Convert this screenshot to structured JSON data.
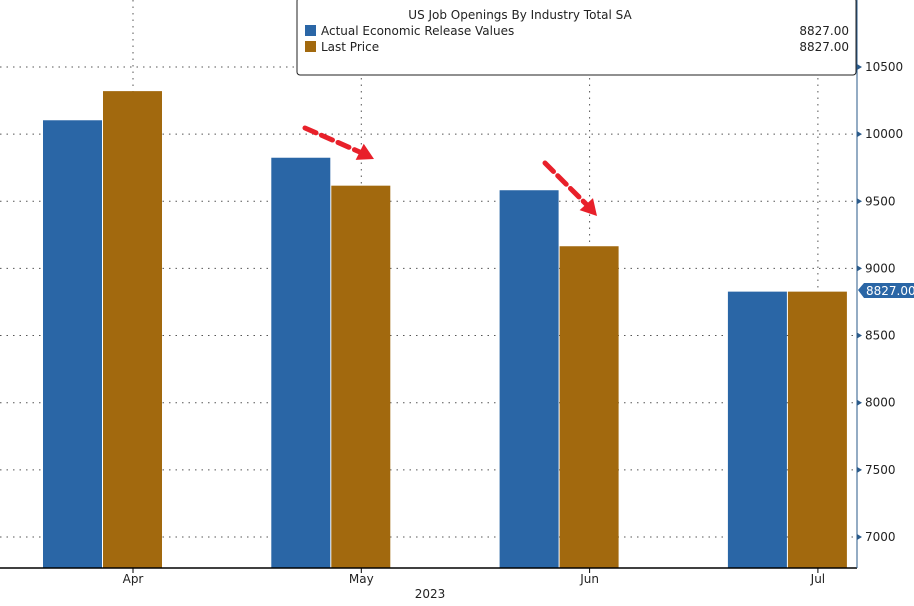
{
  "chart_data": {
    "type": "bar",
    "title": "US Job Openings By Industry Total SA",
    "categories": [
      "Apr",
      "May",
      "Jun",
      "Jul"
    ],
    "xlabel": "2023",
    "ylabel": "",
    "ylim": [
      6770,
      11000
    ],
    "yticks": [
      7000,
      7500,
      8000,
      8500,
      9000,
      9500,
      10000,
      10500
    ],
    "grid": true,
    "legend_placement": "top-right",
    "series": [
      {
        "name": "Actual Economic Release Values",
        "color": "#2a66a6",
        "values": [
          10103,
          9824,
          9582,
          8827
        ],
        "legend_value": "8827.00"
      },
      {
        "name": "Last Price",
        "color": "#a2690e",
        "values": [
          10320,
          9616,
          9165,
          8827
        ],
        "legend_value": "8827.00"
      }
    ],
    "last_value_label": "8827.00",
    "annotations": [
      {
        "type": "arrow",
        "color": "#e8202a",
        "description_category": "May"
      },
      {
        "type": "arrow",
        "color": "#e8202a",
        "description_category": "Jun"
      }
    ]
  }
}
